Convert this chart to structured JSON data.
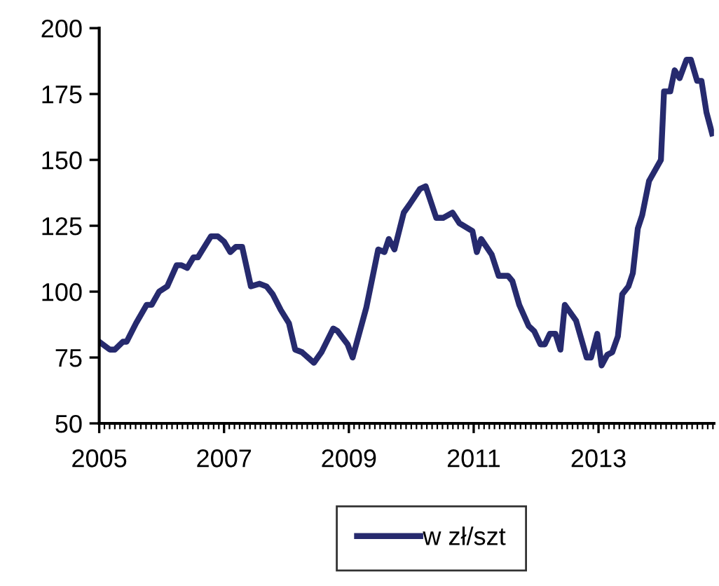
{
  "chart_data": {
    "type": "line",
    "x": [
      2005.0,
      2005.17,
      2005.25,
      2005.38,
      2005.44,
      2005.59,
      2005.76,
      2005.84,
      2005.96,
      2006.09,
      2006.24,
      2006.32,
      2006.41,
      2006.51,
      2006.58,
      2006.79,
      2006.9,
      2007.0,
      2007.1,
      2007.19,
      2007.29,
      2007.43,
      2007.57,
      2007.68,
      2007.78,
      2007.91,
      2008.04,
      2008.14,
      2008.25,
      2008.44,
      2008.56,
      2008.75,
      2008.82,
      2008.98,
      2009.06,
      2009.28,
      2009.47,
      2009.57,
      2009.64,
      2009.73,
      2009.88,
      2009.97,
      2010.14,
      2010.23,
      2010.4,
      2010.51,
      2010.66,
      2010.77,
      2010.98,
      2011.05,
      2011.12,
      2011.29,
      2011.4,
      2011.55,
      2011.62,
      2011.73,
      2011.88,
      2011.97,
      2012.07,
      2012.14,
      2012.22,
      2012.31,
      2012.39,
      2012.46,
      2012.64,
      2012.81,
      2012.88,
      2012.98,
      2013.05,
      2013.14,
      2013.22,
      2013.31,
      2013.38,
      2013.48,
      2013.55,
      2013.63,
      2013.7,
      2013.81,
      2014.0,
      2014.05,
      2014.15,
      2014.22,
      2014.3,
      2014.41,
      2014.48,
      2014.58,
      2014.65,
      2014.73,
      2014.82
    ],
    "series": [
      {
        "name": "w zł/szt",
        "color": "#262a6e",
        "values": [
          81,
          78,
          78,
          81,
          81,
          88,
          95,
          95,
          100,
          102,
          110,
          110,
          109,
          113,
          113,
          121,
          121,
          119,
          115,
          117,
          117,
          102,
          103,
          102,
          99,
          93,
          88,
          78,
          77,
          73,
          77,
          86,
          85,
          80,
          75,
          94,
          116,
          115,
          120,
          116,
          130,
          133,
          139,
          140,
          128,
          128,
          130,
          126,
          123,
          115,
          120,
          114,
          106,
          106,
          104,
          95,
          87,
          85,
          80,
          80,
          84,
          84,
          78,
          95,
          89,
          75,
          75,
          84,
          72,
          76,
          77,
          83,
          99,
          102,
          107,
          124,
          129,
          142,
          150,
          176,
          176,
          184,
          181,
          188,
          188,
          180,
          180,
          168,
          160
        ]
      }
    ],
    "xlim": [
      2005,
      2014.85
    ],
    "xticks": [
      2005,
      2007,
      2009,
      2011,
      2013
    ],
    "ylim": [
      50,
      200
    ],
    "yticks": [
      50,
      75,
      100,
      125,
      150,
      175,
      200
    ],
    "grid": false,
    "legend": "bottom",
    "marker": "none",
    "line_style": "solid"
  }
}
